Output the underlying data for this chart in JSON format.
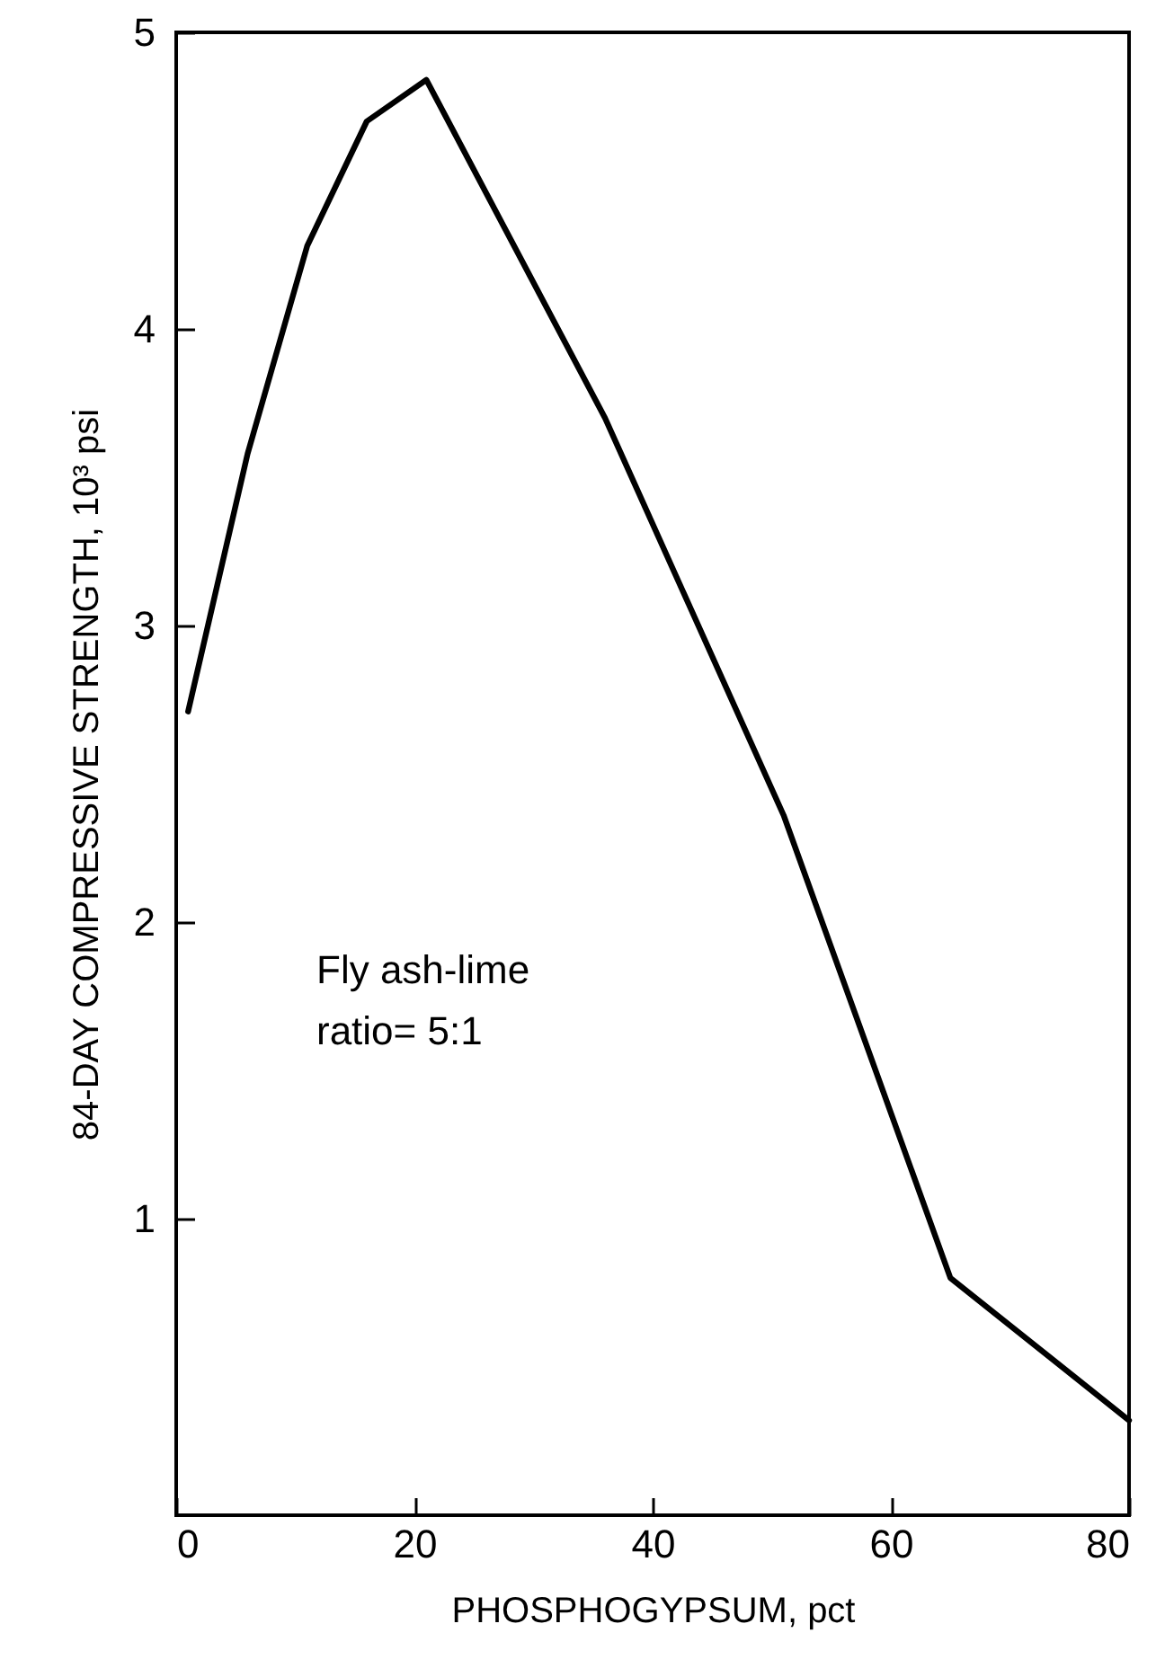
{
  "chart_data": {
    "type": "line",
    "xlabel": "PHOSPHOGYPSUM, pct",
    "ylabel": "84-DAY COMPRESSIVE STRENGTH, 10³ psi",
    "x": [
      1,
      6,
      11,
      16,
      21,
      36,
      51,
      65,
      80
    ],
    "series": [
      {
        "color": "#000000",
        "values": [
          2.71,
          3.58,
          4.28,
          4.7,
          4.84,
          3.7,
          2.36,
          0.8,
          0.32
        ]
      }
    ],
    "xlim": [
      0,
      80
    ],
    "xticks": [
      0,
      20,
      40,
      60,
      80
    ],
    "ylim": [
      0,
      5
    ],
    "yticks": [
      1,
      2,
      3,
      4,
      5
    ],
    "annotations": [
      "Fly ash-lime\n ratio= 5:1"
    ],
    "grid": false,
    "marker": "none",
    "line_style": "solid"
  }
}
